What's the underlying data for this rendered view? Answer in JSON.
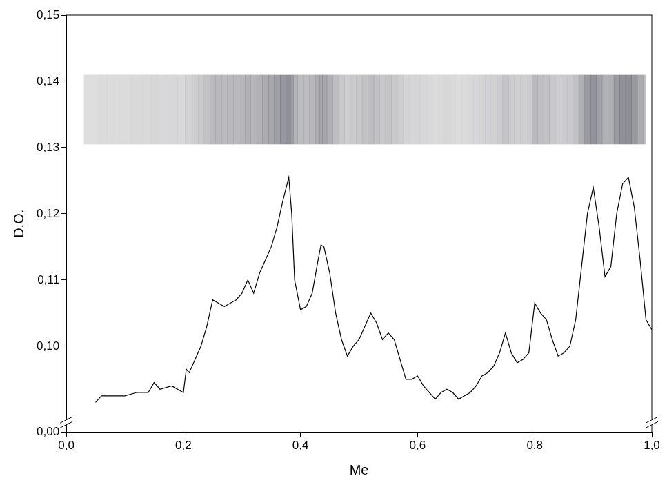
{
  "chart_data": {
    "type": "line",
    "x_label": "Me",
    "y_label": "D.O.",
    "color": "#000000",
    "grid": false,
    "xlim": [
      0,
      1
    ],
    "xticks": [
      {
        "value": 0,
        "label": "0,0"
      },
      {
        "value": 0.2,
        "label": "0,2"
      },
      {
        "value": 0.4,
        "label": "0,4"
      },
      {
        "value": 0.6,
        "label": "0,6"
      },
      {
        "value": 0.8,
        "label": "0,8"
      },
      {
        "value": 1,
        "label": "1,0"
      }
    ],
    "ylim": [
      0,
      0.15
    ],
    "yticks": [
      {
        "value": 0,
        "label": "0,00"
      },
      {
        "value": 0.1,
        "label": "0,10"
      },
      {
        "value": 0.11,
        "label": "0,11"
      },
      {
        "value": 0.12,
        "label": "0,12"
      },
      {
        "value": 0.13,
        "label": "0,13"
      },
      {
        "value": 0.14,
        "label": "0,14"
      },
      {
        "value": 0.15,
        "label": "0,15"
      }
    ],
    "x": [
      0.05,
      0.06,
      0.08,
      0.1,
      0.12,
      0.14,
      0.15,
      0.16,
      0.18,
      0.2,
      0.205,
      0.21,
      0.22,
      0.23,
      0.24,
      0.25,
      0.26,
      0.27,
      0.28,
      0.29,
      0.3,
      0.31,
      0.32,
      0.33,
      0.34,
      0.35,
      0.36,
      0.37,
      0.38,
      0.385,
      0.39,
      0.4,
      0.41,
      0.42,
      0.43,
      0.435,
      0.44,
      0.45,
      0.46,
      0.47,
      0.48,
      0.49,
      0.5,
      0.51,
      0.52,
      0.53,
      0.54,
      0.55,
      0.56,
      0.57,
      0.58,
      0.59,
      0.6,
      0.61,
      0.62,
      0.63,
      0.64,
      0.65,
      0.66,
      0.67,
      0.68,
      0.69,
      0.7,
      0.71,
      0.72,
      0.73,
      0.74,
      0.75,
      0.76,
      0.77,
      0.78,
      0.79,
      0.8,
      0.81,
      0.82,
      0.83,
      0.84,
      0.85,
      0.86,
      0.87,
      0.88,
      0.89,
      0.9,
      0.91,
      0.92,
      0.93,
      0.94,
      0.95,
      0.96,
      0.97,
      0.98,
      0.99,
      1.0
    ],
    "values": [
      0.0915,
      0.0925,
      0.0925,
      0.0925,
      0.093,
      0.093,
      0.0945,
      0.0935,
      0.094,
      0.093,
      0.0965,
      0.096,
      0.098,
      0.1,
      0.103,
      0.107,
      0.1065,
      0.106,
      0.1065,
      0.107,
      0.108,
      0.11,
      0.108,
      0.111,
      0.113,
      0.115,
      0.118,
      0.122,
      0.1255,
      0.12,
      0.11,
      0.1055,
      0.106,
      0.108,
      0.113,
      0.1153,
      0.115,
      0.111,
      0.105,
      0.101,
      0.0985,
      0.1,
      0.101,
      0.103,
      0.105,
      0.1035,
      0.101,
      0.102,
      0.101,
      0.098,
      0.095,
      0.095,
      0.0955,
      0.094,
      0.093,
      0.092,
      0.093,
      0.0935,
      0.093,
      0.092,
      0.0925,
      0.093,
      0.094,
      0.0955,
      0.096,
      0.097,
      0.099,
      0.102,
      0.099,
      0.0975,
      0.098,
      0.099,
      0.1065,
      0.105,
      0.104,
      0.101,
      0.0985,
      0.099,
      0.1,
      0.104,
      0.112,
      0.12,
      0.124,
      0.118,
      0.1105,
      0.112,
      0.12,
      0.1245,
      0.1255,
      0.121,
      0.113,
      0.104,
      0.1025
    ]
  }
}
